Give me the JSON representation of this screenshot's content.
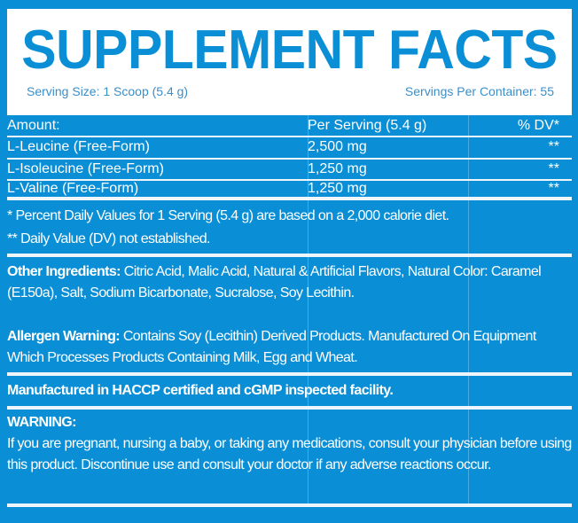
{
  "title": "SUPPLEMENT FACTS",
  "serving_size": "Serving Size: 1 Scoop (5.4 g)",
  "servings_per_container": "Servings Per Container: 55",
  "table": {
    "header": {
      "amount": "Amount:",
      "per_serving": "Per Serving (5.4 g)",
      "dv": "% DV*"
    },
    "rows": [
      {
        "name": "L-Leucine (Free-Form)",
        "amount": "2,500 mg",
        "dv": "**"
      },
      {
        "name": "L-Isoleucine (Free-Form)",
        "amount": "1,250 mg",
        "dv": "**"
      },
      {
        "name": "L-Valine (Free-Form)",
        "amount": "1,250 mg",
        "dv": "**"
      }
    ]
  },
  "footnotes": [
    "* Percent Daily Values for 1 Serving (5.4 g) are based on a 2,000 calorie diet.",
    "** Daily Value (DV) not established."
  ],
  "other_ingredients": {
    "label": "Other Ingredients:",
    "text": " Citric Acid, Malic Acid, Natural & Artificial Flavors, Natural Color: Caramel (E150a), Salt, Sodium Bicarbonate, Sucralose, Soy Lecithin."
  },
  "allergen": {
    "label": "Allergen Warning:",
    "text": " Contains Soy (Lecithin) Derived Products. Manufactured On Equipment Which Processes Products Containing Milk, Egg and Wheat."
  },
  "facility": "Manufactured in HACCP certified and cGMP inspected facility.",
  "warning": {
    "label": "WARNING:",
    "text": "If you are pregnant, nursing a baby, or taking any medications, consult your physician before using this product. Discontinue use and consult your doctor if any adverse reactions occur."
  },
  "colors": {
    "background": "#0a8fd6",
    "panel": "#ffffff"
  }
}
